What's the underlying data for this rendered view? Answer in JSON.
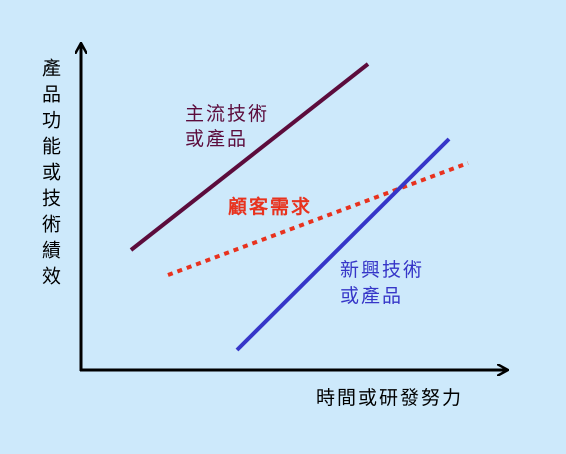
{
  "y_axis_label": "產品功能或技術績效",
  "x_axis_label": "時間或研發努力",
  "lines": [
    {
      "label": [
        "主流技術",
        "或產品"
      ]
    },
    {
      "label": [
        "顧客需求"
      ]
    },
    {
      "label": [
        "新興技術",
        "或產品"
      ]
    }
  ]
}
